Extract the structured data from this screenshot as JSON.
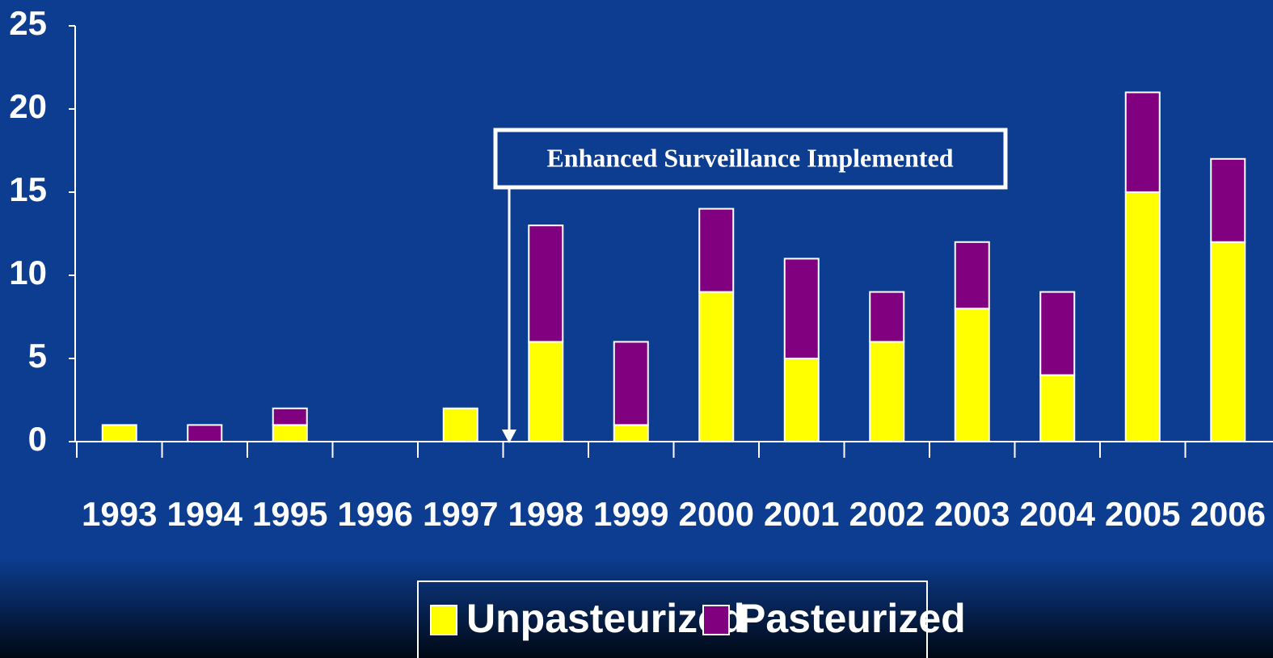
{
  "chart_data": {
    "type": "stacked_bar",
    "annotation": "Enhanced Surveillance Implemented",
    "categories": [
      "1993",
      "1994",
      "1995",
      "1996",
      "1997",
      "1998",
      "1999",
      "2000",
      "2001",
      "2002",
      "2003",
      "2004",
      "2005",
      "2006"
    ],
    "series": [
      {
        "name": "Unpasteurized",
        "color": "#ffff00",
        "values": [
          1,
          0,
          1,
          0,
          2,
          6,
          1,
          9,
          5,
          6,
          8,
          4,
          15,
          12
        ]
      },
      {
        "name": "Pasteurized",
        "color": "#800080",
        "values": [
          0,
          1,
          1,
          0,
          0,
          7,
          5,
          5,
          6,
          3,
          4,
          5,
          6,
          5
        ]
      }
    ],
    "ylim": [
      0,
      25
    ],
    "yticks": [
      0,
      5,
      10,
      15,
      20,
      25
    ]
  }
}
